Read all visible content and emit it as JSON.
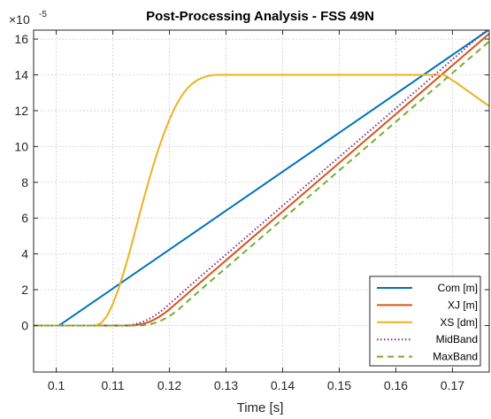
{
  "chart_data": {
    "type": "line",
    "title": "Post-Processing Analysis - FSS 49N",
    "xlabel": "Time [s]",
    "ylabel": "",
    "y_multiplier": {
      "base": "×10",
      "exponent": "-5"
    },
    "xlim": [
      0.096,
      0.1765
    ],
    "ylim": [
      -2.6,
      16.5
    ],
    "x_ticks": [
      0.1,
      0.11,
      0.12,
      0.13,
      0.14,
      0.15,
      0.16,
      0.17
    ],
    "x_tick_labels": [
      "0.1",
      "0.11",
      "0.12",
      "0.13",
      "0.14",
      "0.15",
      "0.16",
      "0.17"
    ],
    "y_ticks": [
      0,
      2,
      4,
      6,
      8,
      10,
      12,
      14,
      16
    ],
    "y_tick_labels": [
      "0",
      "2",
      "4",
      "6",
      "8",
      "10",
      "12",
      "14",
      "16"
    ],
    "grid": true,
    "legend_position": "bottom-right",
    "series": [
      {
        "name": "Com [m]",
        "color": "#0072BD",
        "dash": "solid",
        "x": [
          0.096,
          0.1005,
          0.1765
        ],
        "y": [
          0,
          0,
          16.53
        ]
      },
      {
        "name": "XJ [m]",
        "color": "#D95319",
        "dash": "solid",
        "x": [
          0.096,
          0.113,
          0.114,
          0.115,
          0.116,
          0.117,
          0.118,
          0.119,
          0.12,
          0.122,
          0.124,
          0.1765
        ],
        "y": [
          0,
          0,
          0.02,
          0.07,
          0.15,
          0.28,
          0.45,
          0.66,
          0.91,
          1.45,
          2.01,
          16.3
        ]
      },
      {
        "name": "XS [dm]",
        "color": "#EDB120",
        "dash": "solid",
        "x": [
          0.096,
          0.107,
          0.108,
          0.109,
          0.11,
          0.111,
          0.112,
          0.113,
          0.114,
          0.115,
          0.116,
          0.117,
          0.118,
          0.119,
          0.12,
          0.121,
          0.122,
          0.123,
          0.124,
          0.125,
          0.126,
          0.127,
          0.128,
          0.1685,
          0.1705,
          0.1725,
          0.1745,
          0.1765
        ],
        "y": [
          0,
          0,
          0.15,
          0.55,
          1.2,
          2.05,
          3.05,
          4.15,
          5.35,
          6.55,
          7.7,
          8.8,
          9.8,
          10.7,
          11.5,
          12.2,
          12.75,
          13.2,
          13.5,
          13.72,
          13.86,
          13.95,
          14.0,
          14.0,
          13.6,
          13.15,
          12.7,
          12.25
        ]
      },
      {
        "name": "MidBand",
        "color": "#7E2F8E",
        "dash": "dotted",
        "x": [
          0.096,
          0.112,
          0.113,
          0.114,
          0.115,
          0.116,
          0.117,
          0.118,
          0.119,
          0.12,
          0.122,
          0.124,
          0.1765
        ],
        "y": [
          0,
          0,
          0.02,
          0.08,
          0.17,
          0.3,
          0.47,
          0.68,
          0.92,
          1.2,
          1.76,
          2.33,
          16.63
        ]
      },
      {
        "name": "MaxBand",
        "color": "#77AC30",
        "dash": "dashed",
        "x": [
          0.096,
          0.1145,
          0.1155,
          0.1165,
          0.1175,
          0.1185,
          0.1195,
          0.1205,
          0.1215,
          0.1225,
          0.1245,
          0.1265,
          0.1765
        ],
        "y": [
          0,
          0,
          0.02,
          0.07,
          0.15,
          0.27,
          0.43,
          0.63,
          0.87,
          1.15,
          1.71,
          2.27,
          15.87
        ]
      }
    ]
  }
}
